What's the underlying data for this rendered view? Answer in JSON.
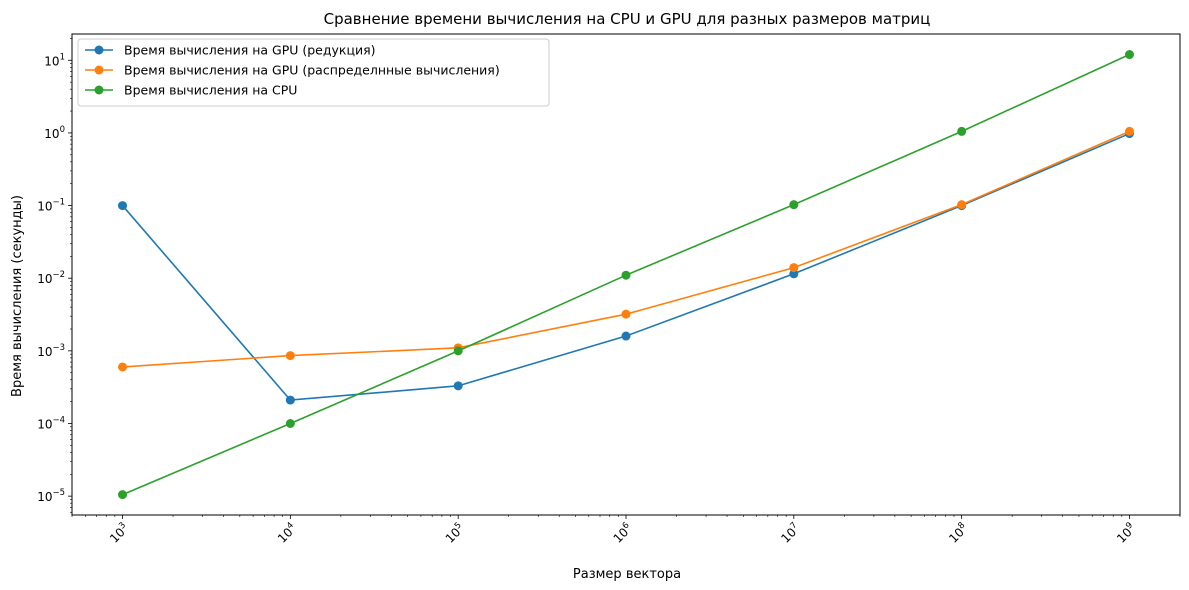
{
  "chart_data": {
    "type": "line",
    "title": "Сравнение времени вычисления на CPU и GPU для разных размеров матриц",
    "xlabel": "Размер вектора",
    "ylabel": "Время вычисления (секунды)",
    "xscale": "log",
    "yscale": "log",
    "xlim": [
      500,
      2000000000
    ],
    "ylim": [
      5.5e-06,
      23
    ],
    "x": [
      1000,
      10000,
      100000,
      1000000,
      10000000,
      100000000,
      1000000000
    ],
    "x_tick_labels": [
      {
        "base": "10",
        "exp": "3"
      },
      {
        "base": "10",
        "exp": "4"
      },
      {
        "base": "10",
        "exp": "5"
      },
      {
        "base": "10",
        "exp": "6"
      },
      {
        "base": "10",
        "exp": "7"
      },
      {
        "base": "10",
        "exp": "8"
      },
      {
        "base": "10",
        "exp": "9"
      }
    ],
    "y_ticks": [
      1e-05,
      0.0001,
      0.001,
      0.01,
      0.1,
      1,
      10
    ],
    "y_tick_labels": [
      {
        "base": "10",
        "exp": "−5"
      },
      {
        "base": "10",
        "exp": "−4"
      },
      {
        "base": "10",
        "exp": "−3"
      },
      {
        "base": "10",
        "exp": "−2"
      },
      {
        "base": "10",
        "exp": "−1"
      },
      {
        "base": "10",
        "exp": "0"
      },
      {
        "base": "10",
        "exp": "1"
      }
    ],
    "grid": false,
    "legend_position": "upper-left",
    "series": [
      {
        "name": "Время вычисления на GPU (редукция)",
        "color": "#1f77b4",
        "marker": "circle",
        "values": [
          0.1,
          0.00021,
          0.00033,
          0.0016,
          0.0115,
          0.1,
          0.98
        ]
      },
      {
        "name": "Время вычисления на GPU (распределнные вычисления)",
        "color": "#ff7f0e",
        "marker": "circle",
        "values": [
          0.0006,
          0.00086,
          0.0011,
          0.0032,
          0.014,
          0.103,
          1.05
        ]
      },
      {
        "name": "Время вычисления на CPU",
        "color": "#2ca02c",
        "marker": "circle",
        "values": [
          1.05e-05,
          0.0001,
          0.001,
          0.011,
          0.103,
          1.05,
          12
        ]
      }
    ]
  }
}
